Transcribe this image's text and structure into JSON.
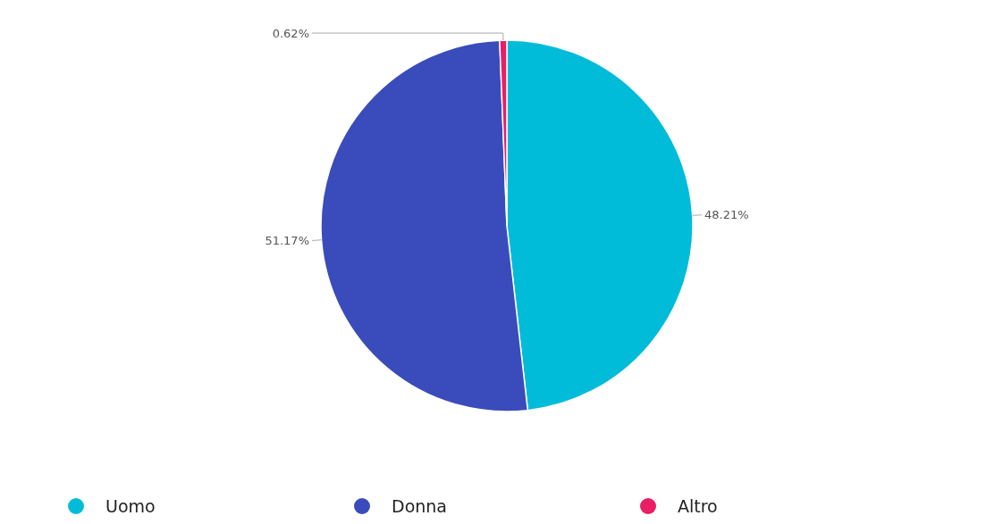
{
  "chart_data": {
    "type": "pie",
    "categories": [
      "Uomo",
      "Donna",
      "Altro"
    ],
    "values": [
      48.21,
      51.17,
      0.62
    ],
    "colors": [
      "#00bcd9",
      "#3a4cbb",
      "#e91e63"
    ],
    "value_labels": [
      "48.21%",
      "51.17%",
      "0.62%"
    ],
    "legend": "bottom"
  }
}
